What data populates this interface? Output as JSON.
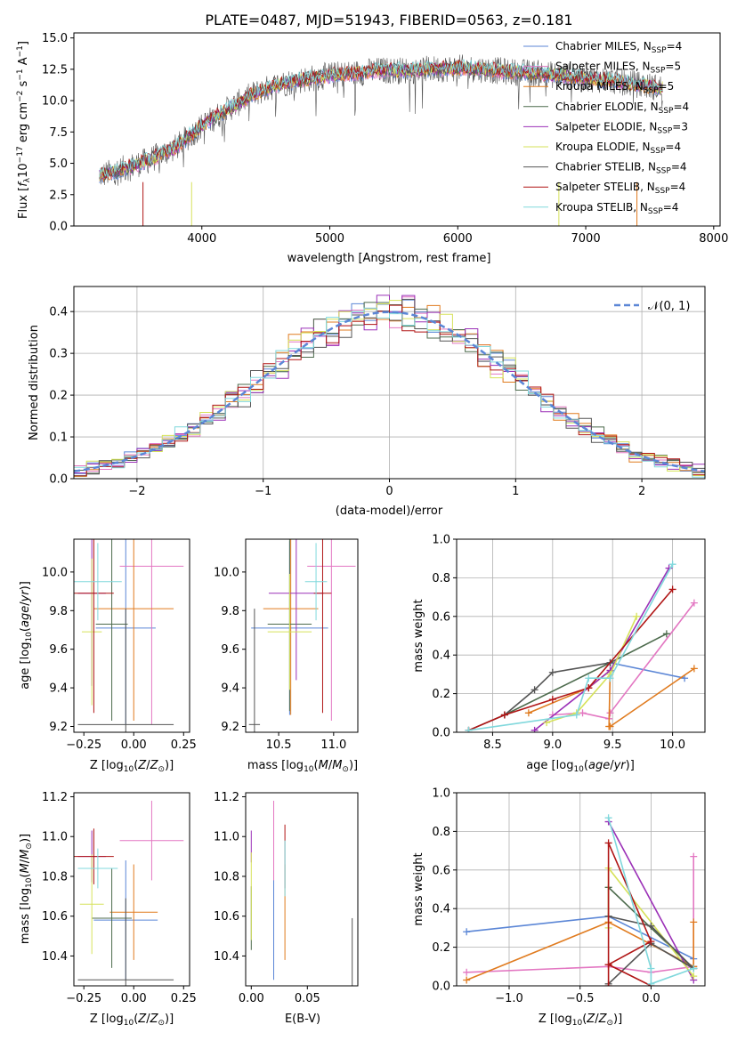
{
  "figure": {
    "title": "PLATE=0487, MJD=51943, FIBERID=0563, z=0.181"
  },
  "colors": {
    "cmiles": "#5b86d6",
    "smiles": "#e377c2",
    "kmiles": "#e07b1f",
    "celodie": "#4d6b4d",
    "selodie": "#9b30b7",
    "kelodie": "#d6e25a",
    "cstelib": "#555555",
    "sstelib": "#b01515",
    "kstelib": "#80d8dc",
    "normal": "#5b86d6"
  },
  "chart_data": [
    {
      "id": "spectrum",
      "type": "line",
      "title": "PLATE=0487, MJD=51943, FIBERID=0563, z=0.181",
      "xlabel": "wavelength [Angstrom, rest frame]",
      "ylabel": "Flux [f_λ 10^-17 erg cm^-2 s^-1 A^-1]",
      "xlim": [
        3000,
        8050
      ],
      "ylim": [
        0,
        15.4
      ],
      "xticks": [
        4000,
        5000,
        6000,
        7000,
        8000
      ],
      "yticks": [
        0.0,
        2.5,
        5.0,
        7.5,
        10.0,
        12.5,
        15.0
      ],
      "legend_position": "top-right",
      "continuum": {
        "x": [
          3200,
          3400,
          3600,
          3800,
          4000,
          4200,
          4400,
          4600,
          4800,
          5000,
          5200,
          5400,
          5600,
          5800,
          6000,
          6200,
          6400,
          6600,
          6800,
          7000,
          7200,
          7400,
          7600
        ],
        "y": [
          4.0,
          4.6,
          5.3,
          6.3,
          8.0,
          9.3,
          10.5,
          11.3,
          11.7,
          12.0,
          12.2,
          12.4,
          12.4,
          12.5,
          12.6,
          12.5,
          12.3,
          12.2,
          12.0,
          11.8,
          11.6,
          11.3,
          11.0
        ]
      },
      "series": [
        {
          "name": "Chabrier MILES, N_SSP=4",
          "label": "Chabrier MILES, N",
          "sub": "SSP",
          "tail": "=4",
          "color_key": "cmiles"
        },
        {
          "name": "Salpeter MILES, N_SSP=5",
          "label": "Salpeter MILES, N",
          "sub": "SSP",
          "tail": "=5",
          "color_key": "smiles"
        },
        {
          "name": "Kroupa MILES, N_SSP=5",
          "label": "Kroupa MILES, N",
          "sub": "SSP",
          "tail": "=5",
          "color_key": "kmiles"
        },
        {
          "name": "Chabrier ELODIE, N_SSP=4",
          "label": "Chabrier ELODIE, N",
          "sub": "SSP",
          "tail": "=4",
          "color_key": "celodie"
        },
        {
          "name": "Salpeter ELODIE, N_SSP=3",
          "label": "Salpeter ELODIE, N",
          "sub": "SSP",
          "tail": "=3",
          "color_key": "selodie"
        },
        {
          "name": "Kroupa ELODIE, N_SSP=4",
          "label": "Kroupa ELODIE, N",
          "sub": "SSP",
          "tail": "=4",
          "color_key": "kelodie"
        },
        {
          "name": "Chabrier STELIB, N_SSP=4",
          "label": "Chabrier STELIB, N",
          "sub": "SSP",
          "tail": "=4",
          "color_key": "cstelib"
        },
        {
          "name": "Salpeter STELIB, N_SSP=4",
          "label": "Salpeter STELIB, N",
          "sub": "SSP",
          "tail": "=4",
          "color_key": "sstelib"
        },
        {
          "name": "Kroupa STELIB, N_SSP=4",
          "label": "Kroupa STELIB, N",
          "sub": "SSP",
          "tail": "=4",
          "color_key": "kstelib"
        }
      ]
    },
    {
      "id": "residuals",
      "type": "line",
      "xlabel": "(data-model)/error",
      "ylabel": "Normed distribution",
      "xlim": [
        -2.5,
        2.5
      ],
      "ylim": [
        0,
        0.46
      ],
      "xticks": [
        -2,
        -1,
        0,
        1,
        2
      ],
      "yticks": [
        0.0,
        0.1,
        0.2,
        0.3,
        0.4
      ],
      "grid": true,
      "legend_position": "top-right",
      "normal_label": "𝒩(0, 1)",
      "bin_width": 0.1
    },
    {
      "id": "age_vs_Z",
      "type": "scatter",
      "xlabel": "Z [log10(Z/Z⊙)]",
      "ylabel": "age [log10(age/yr)]",
      "xlim": [
        -0.3,
        0.28
      ],
      "ylim": [
        9.17,
        10.17
      ],
      "xticks": [
        -0.25,
        0.0,
        0.25
      ],
      "yticks": [
        9.2,
        9.4,
        9.6,
        9.8,
        10.0
      ],
      "points": [
        {
          "color_key": "cmiles",
          "x": -0.04,
          "y": 9.71,
          "xerr": 0.15,
          "yerr": 0.5
        },
        {
          "color_key": "smiles",
          "x": 0.09,
          "y": 10.03,
          "xerr": 0.16,
          "yerr": 0.82
        },
        {
          "color_key": "kmiles",
          "x": 0.0,
          "y": 9.81,
          "xerr": 0.2,
          "yerr": 0.58
        },
        {
          "color_key": "celodie",
          "x": -0.11,
          "y": 9.73,
          "xerr": 0.08,
          "yerr": 0.5
        },
        {
          "color_key": "selodie",
          "x": -0.21,
          "y": 9.89,
          "xerr": 0.07,
          "yerr": 0.48
        },
        {
          "color_key": "kelodie",
          "x": -0.21,
          "y": 9.69,
          "xerr": 0.05,
          "yerr": 0.38
        },
        {
          "color_key": "cstelib",
          "x": -0.04,
          "y": 9.21,
          "xerr": 0.24,
          "yerr": 0.6
        },
        {
          "color_key": "sstelib",
          "x": -0.2,
          "y": 9.89,
          "xerr": 0.1,
          "yerr": 0.62
        },
        {
          "color_key": "kstelib",
          "x": -0.18,
          "y": 9.95,
          "xerr": 0.12,
          "yerr": 0.2
        }
      ]
    },
    {
      "id": "age_vs_mass",
      "type": "scatter",
      "xlabel": "mass [log10(M/M⊙)]",
      "ylabel": "",
      "xlim": [
        10.2,
        11.22
      ],
      "ylim": [
        9.17,
        10.17
      ],
      "xticks": [
        10.5,
        11.0
      ],
      "yticks": [
        9.2,
        9.4,
        9.6,
        9.8,
        10.0
      ],
      "points": [
        {
          "color_key": "cmiles",
          "x": 10.6,
          "y": 9.71,
          "xerr": 0.35,
          "yerr": 0.45
        },
        {
          "color_key": "smiles",
          "x": 10.98,
          "y": 10.03,
          "xerr": 0.22,
          "yerr": 0.8
        },
        {
          "color_key": "kmiles",
          "x": 10.61,
          "y": 9.81,
          "xerr": 0.25,
          "yerr": 0.55
        },
        {
          "color_key": "celodie",
          "x": 10.6,
          "y": 9.73,
          "xerr": 0.2,
          "yerr": 0.45
        },
        {
          "color_key": "selodie",
          "x": 10.66,
          "y": 9.89,
          "xerr": 0.25,
          "yerr": 0.45
        },
        {
          "color_key": "kelodie",
          "x": 10.6,
          "y": 9.69,
          "xerr": 0.2,
          "yerr": 0.3
        },
        {
          "color_key": "cstelib",
          "x": 10.28,
          "y": 9.21,
          "xerr": 0.05,
          "yerr": 0.6
        },
        {
          "color_key": "sstelib",
          "x": 10.9,
          "y": 9.89,
          "xerr": 0.08,
          "yerr": 0.62
        },
        {
          "color_key": "kstelib",
          "x": 10.84,
          "y": 9.95,
          "xerr": 0.1,
          "yerr": 0.2
        }
      ]
    },
    {
      "id": "weight_vs_age",
      "type": "line",
      "xlabel": "age [log10(age/yr)]",
      "ylabel": "mass weight",
      "xlim": [
        8.2,
        10.27
      ],
      "ylim": [
        0,
        1.0
      ],
      "xticks": [
        8.5,
        9.0,
        9.5,
        10.0
      ],
      "yticks": [
        0.0,
        0.2,
        0.4,
        0.6,
        0.8,
        1.0
      ],
      "grid": true,
      "series": [
        {
          "color_key": "cmiles",
          "x": [
            9.48,
            10.1
          ],
          "y": [
            0.36,
            0.28
          ]
        },
        {
          "color_key": "smiles",
          "x": [
            9.0,
            9.25,
            9.47,
            9.48,
            10.18
          ],
          "y": [
            0.09,
            0.1,
            0.07,
            0.1,
            0.67
          ]
        },
        {
          "color_key": "kmiles",
          "x": [
            8.8,
            9.3,
            9.48,
            9.47,
            9.48,
            10.18
          ],
          "y": [
            0.1,
            0.23,
            0.32,
            0.03,
            0.03,
            0.33
          ]
        },
        {
          "color_key": "celodie",
          "x": [
            8.6,
            9.48,
            9.95
          ],
          "y": [
            0.09,
            0.36,
            0.51
          ]
        },
        {
          "color_key": "selodie",
          "x": [
            8.85,
            9.48,
            9.97
          ],
          "y": [
            0.01,
            0.32,
            0.85
          ]
        },
        {
          "color_key": "kelodie",
          "x": [
            8.95,
            9.2,
            9.48,
            9.7
          ],
          "y": [
            0.05,
            0.1,
            0.3,
            0.6
          ]
        },
        {
          "color_key": "cstelib",
          "x": [
            8.3,
            8.6,
            8.85,
            9.0,
            9.48
          ],
          "y": [
            0.01,
            0.09,
            0.22,
            0.31,
            0.36
          ]
        },
        {
          "color_key": "sstelib",
          "x": [
            8.3,
            8.6,
            9.0,
            9.3,
            9.3,
            10.0
          ],
          "y": [
            0.01,
            0.09,
            0.17,
            0.23,
            0.23,
            0.74
          ]
        },
        {
          "color_key": "kstelib",
          "x": [
            8.3,
            9.2,
            9.3,
            9.48,
            10.0
          ],
          "y": [
            0.01,
            0.09,
            0.28,
            0.28,
            0.87
          ]
        }
      ]
    },
    {
      "id": "mass_vs_Z",
      "type": "scatter",
      "xlabel": "Z [log10(Z/Z⊙)]",
      "ylabel": "mass [log10(M/M⊙)]",
      "xlim": [
        -0.3,
        0.28
      ],
      "ylim": [
        10.25,
        11.22
      ],
      "xticks": [
        -0.25,
        0.0,
        0.25
      ],
      "yticks": [
        10.4,
        10.6,
        10.8,
        11.0,
        11.2
      ],
      "points": [
        {
          "color_key": "cmiles",
          "x": -0.04,
          "y": 10.58,
          "xerr": 0.16,
          "yerr": 0.3
        },
        {
          "color_key": "smiles",
          "x": 0.09,
          "y": 10.98,
          "xerr": 0.16,
          "yerr": 0.2
        },
        {
          "color_key": "kmiles",
          "x": 0.0,
          "y": 10.62,
          "xerr": 0.12,
          "yerr": 0.24
        },
        {
          "color_key": "celodie",
          "x": -0.11,
          "y": 10.59,
          "xerr": 0.1,
          "yerr": 0.25
        },
        {
          "color_key": "selodie",
          "x": -0.21,
          "y": 10.9,
          "xerr": 0.07,
          "yerr": 0.13
        },
        {
          "color_key": "kelodie",
          "x": -0.21,
          "y": 10.66,
          "xerr": 0.06,
          "yerr": 0.25
        },
        {
          "color_key": "cstelib",
          "x": -0.04,
          "y": 10.28,
          "xerr": 0.24,
          "yerr": 0.41
        },
        {
          "color_key": "sstelib",
          "x": -0.2,
          "y": 10.9,
          "xerr": 0.1,
          "yerr": 0.14
        },
        {
          "color_key": "kstelib",
          "x": -0.18,
          "y": 10.84,
          "xerr": 0.1,
          "yerr": 0.1
        }
      ]
    },
    {
      "id": "mass_vs_ebv",
      "type": "scatter",
      "xlabel": "E(B-V)",
      "ylabel": "",
      "xlim": [
        -0.005,
        0.095
      ],
      "ylim": [
        10.25,
        11.22
      ],
      "xticks": [
        0.0,
        0.05
      ],
      "yticks": [
        10.4,
        10.6,
        10.8,
        11.0,
        11.2
      ],
      "points": [
        {
          "color_key": "cmiles",
          "x": 0.02,
          "y": 10.58,
          "yerr": 0.3
        },
        {
          "color_key": "smiles",
          "x": 0.02,
          "y": 10.98,
          "yerr": 0.2
        },
        {
          "color_key": "kmiles",
          "x": 0.03,
          "y": 10.62,
          "yerr": 0.24
        },
        {
          "color_key": "celodie",
          "x": 0.0,
          "y": 10.59,
          "yerr": 0.16
        },
        {
          "color_key": "selodie",
          "x": 0.0,
          "y": 10.95,
          "yerr": 0.08
        },
        {
          "color_key": "kelodie",
          "x": 0.0,
          "y": 10.7,
          "yerr": 0.22
        },
        {
          "color_key": "cstelib",
          "x": 0.09,
          "y": 10.41,
          "yerr": 0.18
        },
        {
          "color_key": "sstelib",
          "x": 0.03,
          "y": 10.9,
          "yerr": 0.16
        },
        {
          "color_key": "kstelib",
          "x": 0.03,
          "y": 10.84,
          "yerr": 0.14
        }
      ]
    },
    {
      "id": "weight_vs_Z",
      "type": "line",
      "xlabel": "Z [log10(Z/Z⊙)]",
      "ylabel": "mass weight",
      "xlim": [
        -1.37,
        0.38
      ],
      "ylim": [
        0,
        1.0
      ],
      "xticks": [
        -1.0,
        -0.5,
        0.0
      ],
      "yticks": [
        0.0,
        0.2,
        0.4,
        0.6,
        0.8,
        1.0
      ],
      "grid": true,
      "series": [
        {
          "color_key": "cmiles",
          "x": [
            -1.3,
            -0.3,
            0.3
          ],
          "y": [
            0.28,
            0.36,
            0.14
          ]
        },
        {
          "color_key": "smiles",
          "x": [
            -1.3,
            -0.3,
            0.0,
            0.3,
            0.3
          ],
          "y": [
            0.07,
            0.1,
            0.07,
            0.1,
            0.67
          ]
        },
        {
          "color_key": "kmiles",
          "x": [
            -1.3,
            -0.3,
            0.3,
            0.3
          ],
          "y": [
            0.03,
            0.33,
            0.1,
            0.33
          ]
        },
        {
          "color_key": "celodie",
          "x": [
            -0.3,
            -0.3,
            0.3
          ],
          "y": [
            0.36,
            0.51,
            0.09
          ]
        },
        {
          "color_key": "selodie",
          "x": [
            -0.3,
            0.3
          ],
          "y": [
            0.85,
            0.03
          ]
        },
        {
          "color_key": "kelodie",
          "x": [
            -0.3,
            -0.3,
            0.3
          ],
          "y": [
            0.3,
            0.61,
            0.05
          ]
        },
        {
          "color_key": "cstelib",
          "x": [
            -0.3,
            0.0,
            0.3,
            0.0,
            -0.3
          ],
          "y": [
            0.36,
            0.31,
            0.09,
            0.22,
            0.01
          ]
        },
        {
          "color_key": "sstelib",
          "x": [
            -0.3,
            -0.3,
            0.0,
            -0.3,
            0.0,
            -0.3
          ],
          "y": [
            0.0,
            0.74,
            0.23,
            0.11,
            0.0,
            0.11
          ]
        },
        {
          "color_key": "kstelib",
          "x": [
            -0.3,
            0.0,
            0.0,
            0.3
          ],
          "y": [
            0.87,
            0.09,
            0.01,
            0.09
          ]
        }
      ]
    }
  ]
}
